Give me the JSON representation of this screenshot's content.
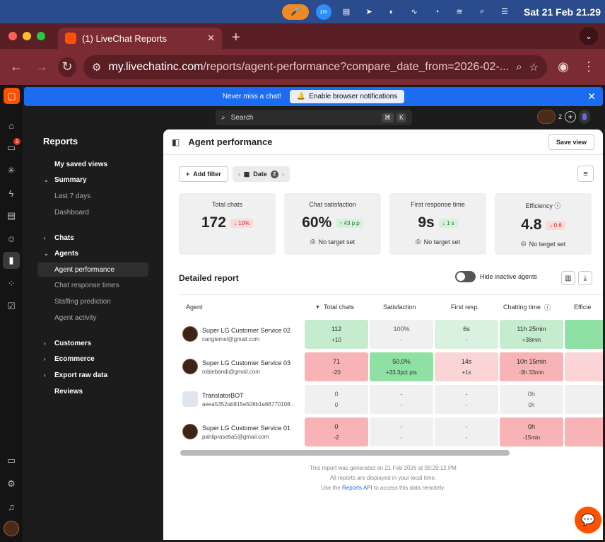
{
  "menubar": {
    "date": "Sat 21 Feb  21.29"
  },
  "browser": {
    "tab_title": "(1) LiveChat Reports",
    "url_host": "my.livechatinc.com",
    "url_path": "/reports/agent-performance?compare_date_from=2026-02-..."
  },
  "notification": {
    "text": "Never miss a chat!",
    "button": "Enable browser notifications"
  },
  "rail": {
    "badge": "1"
  },
  "search": {
    "placeholder": "Search",
    "k1": "⌘",
    "k2": "K"
  },
  "topright": {
    "count": "2"
  },
  "sidebar": {
    "title": "Reports",
    "items": {
      "saved": "My saved views",
      "summary": "Summary",
      "last7": "Last 7 days",
      "dashboard": "Dashboard",
      "chats": "Chats",
      "agents": "Agents",
      "agent_perf": "Agent performance",
      "chat_resp": "Chat response times",
      "staffing": "Staffing prediction",
      "activity": "Agent activity",
      "customers": "Customers",
      "ecommerce": "Ecommerce",
      "export": "Export raw data",
      "reviews": "Reviews"
    }
  },
  "panel": {
    "title": "Agent performance",
    "save_view": "Save view",
    "add_filter": "Add filter",
    "date_label": "Date",
    "date_count": "2"
  },
  "kpis": [
    {
      "label": "Total chats",
      "value": "172",
      "delta": "↓ 10%",
      "target": ""
    },
    {
      "label": "Chat satisfaction",
      "value": "60%",
      "delta": "↑ 43 p.p",
      "target": "No target set"
    },
    {
      "label": "First response time",
      "value": "9s",
      "delta": "↓ 1 s",
      "target": "No target set"
    },
    {
      "label": "Efficiency",
      "value": "4.8",
      "delta": "↓ 0.6",
      "target": "No target set"
    }
  ],
  "report": {
    "title": "Detailed report",
    "hide_inactive": "Hide inactive agents"
  },
  "table": {
    "headers": {
      "agent": "Agent",
      "total": "Total chats",
      "satisfaction": "Satisfaction",
      "first": "First resp.",
      "chatting": "Chatting time",
      "efficiency": "Efficie"
    },
    "rows": [
      {
        "name": "Super LG Customer Service 02",
        "email": "canglemel@gmail.com",
        "total": "112",
        "total_d": "+10",
        "sat": "100%",
        "sat_d": "-",
        "first": "6s",
        "first_d": "-",
        "chat": "11h 25min",
        "chat_d": "+38min"
      },
      {
        "name": "Super LG Customer Service 03",
        "email": "roblebandi@gmail.com",
        "total": "71",
        "total_d": "-20",
        "sat": "50.0%",
        "sat_d": "+33.3pct pts",
        "first": "14s",
        "first_d": "+1s",
        "chat": "10h 15min",
        "chat_d": "-3h 33min"
      },
      {
        "name": "TranslatorBOT",
        "email": "aeea5352ab815e508b1e68770108...",
        "total": "0",
        "total_d": "0",
        "sat": "-",
        "sat_d": "-",
        "first": "-",
        "first_d": "-",
        "chat": "0h",
        "chat_d": "0h"
      },
      {
        "name": "Super LG Customer Service 01",
        "email": "pahliprasetia5@gmail.com",
        "total": "0",
        "total_d": "-2",
        "sat": "-",
        "sat_d": "-",
        "first": "-",
        "first_d": "-",
        "chat": "0h",
        "chat_d": "-15min"
      }
    ]
  },
  "footer": {
    "line1": "This report was generated on 21 Feb 2026 at 09:29:12 PM",
    "line2": "All reports are displayed in your local time.",
    "line3_pre": "Use the",
    "line3_link": "Reports API",
    "line3_post": "to access this data remotely."
  },
  "colors": {
    "accent": "#ff5100",
    "banner": "#1c6cf2"
  }
}
